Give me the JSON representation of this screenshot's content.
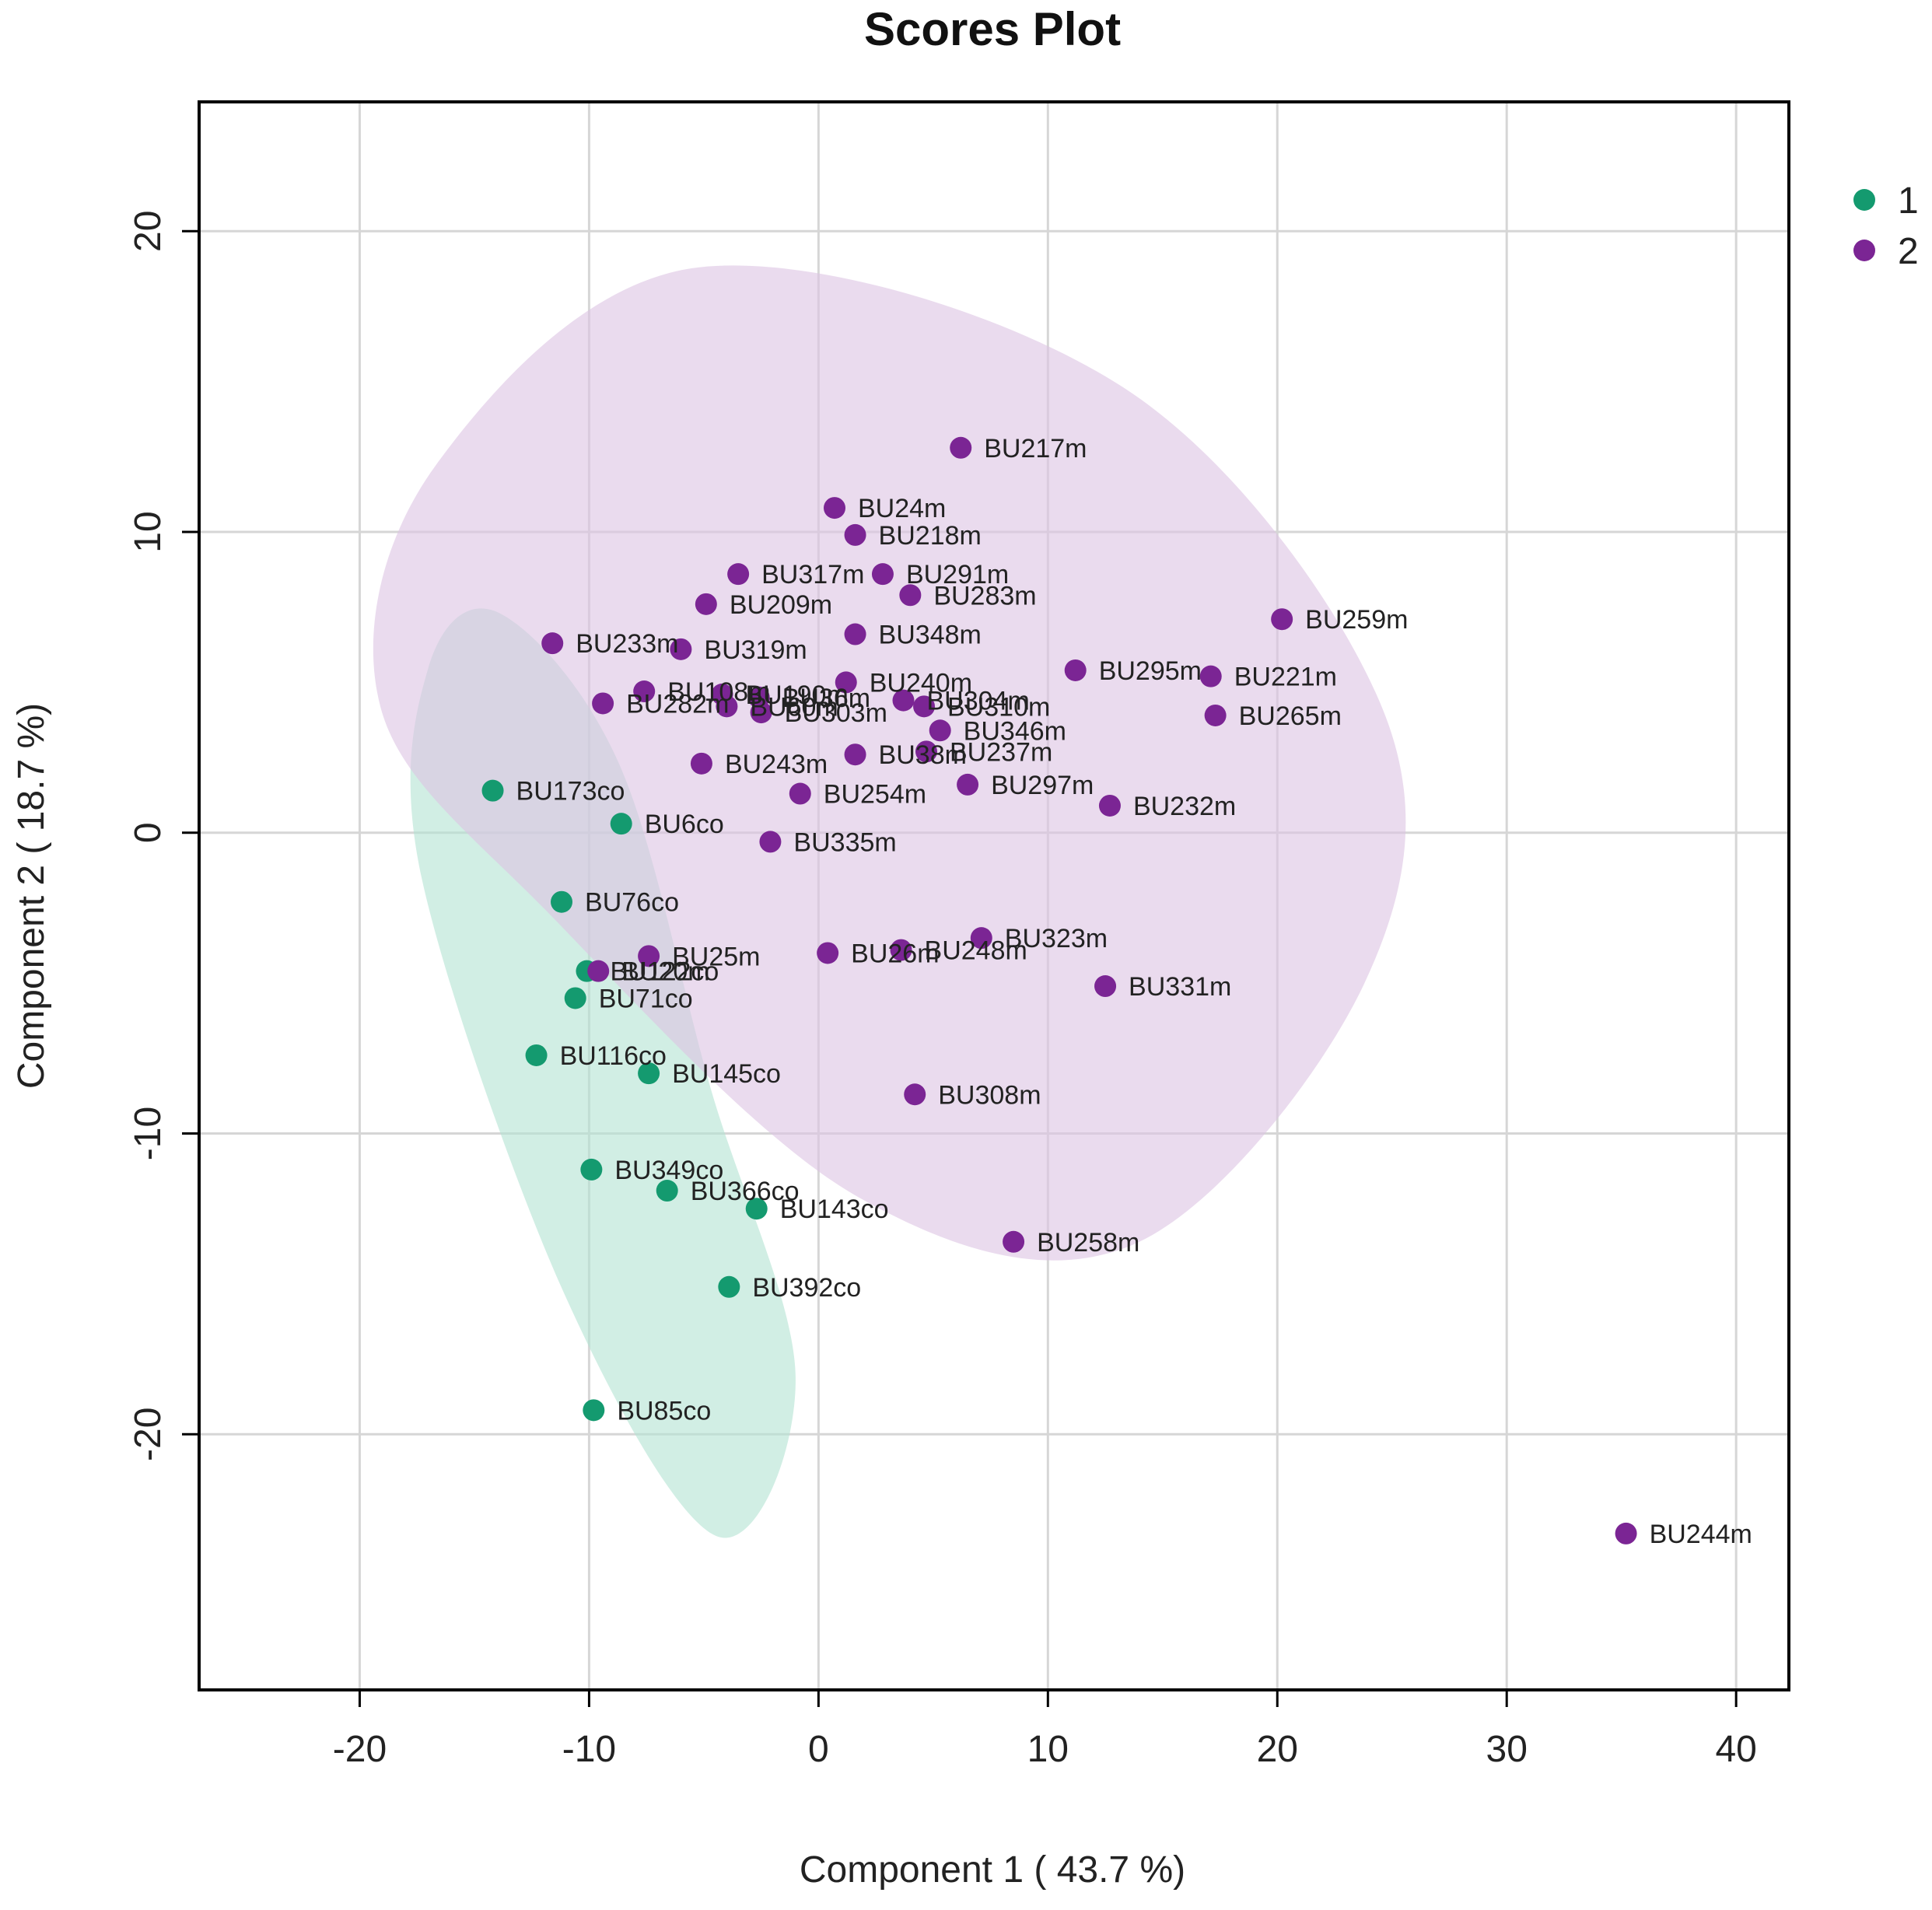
{
  "chart_data": {
    "type": "scatter",
    "title": "Scores Plot",
    "xlabel": "Component 1 ( 43.7 %)",
    "ylabel": "Component 2 ( 18.7 %)",
    "xlim": [
      -27,
      42.3
    ],
    "ylim": [
      -28.5,
      24.3
    ],
    "xticks": [
      -20,
      -10,
      0,
      10,
      20,
      30,
      40
    ],
    "yticks": [
      -20,
      -10,
      0,
      10,
      20
    ],
    "xtick_labels": [
      "-20",
      "-10",
      "0",
      "10",
      "20",
      "30",
      "40"
    ],
    "ytick_labels": [
      "-20",
      "-10",
      "0",
      "10",
      "20"
    ],
    "grid": true,
    "legend_position": "top-right",
    "series": [
      {
        "name": "1",
        "color": "#149a6f",
        "ellipse_fill": "#b3e2d2",
        "points": [
          {
            "label": "BU173co",
            "x": -14.2,
            "y": 1.4
          },
          {
            "label": "BU6co",
            "x": -8.6,
            "y": 0.3
          },
          {
            "label": "BU76co",
            "x": -11.2,
            "y": -2.3
          },
          {
            "label": "BU122co",
            "x": -10.1,
            "y": -4.6
          },
          {
            "label": "BU71co",
            "x": -10.6,
            "y": -5.5
          },
          {
            "label": "BU116co",
            "x": -12.3,
            "y": -7.4
          },
          {
            "label": "BU145co",
            "x": -7.4,
            "y": -8.0
          },
          {
            "label": "BU349co",
            "x": -9.9,
            "y": -11.2
          },
          {
            "label": "BU366co",
            "x": -6.6,
            "y": -11.9
          },
          {
            "label": "BU143co",
            "x": -2.7,
            "y": -12.5
          },
          {
            "label": "BU392co",
            "x": -3.9,
            "y": -15.1
          },
          {
            "label": "BU85co",
            "x": -9.8,
            "y": -19.2
          }
        ]
      },
      {
        "name": "2",
        "color": "#7b2594",
        "ellipse_fill": "#dcc3e3",
        "points": [
          {
            "label": "BU217m",
            "x": 6.2,
            "y": 12.8
          },
          {
            "label": "BU24m",
            "x": 0.7,
            "y": 10.8
          },
          {
            "label": "BU218m",
            "x": 1.6,
            "y": 9.9
          },
          {
            "label": "BU317m",
            "x": -3.5,
            "y": 8.6
          },
          {
            "label": "BU291m",
            "x": 2.8,
            "y": 8.6
          },
          {
            "label": "BU209m",
            "x": -4.9,
            "y": 7.6
          },
          {
            "label": "BU283m",
            "x": 4.0,
            "y": 7.9
          },
          {
            "label": "BU259m",
            "x": 20.2,
            "y": 7.1
          },
          {
            "label": "BU348m",
            "x": 1.6,
            "y": 6.6
          },
          {
            "label": "BU233m",
            "x": -11.6,
            "y": 6.3
          },
          {
            "label": "BU319m",
            "x": -6.0,
            "y": 6.1
          },
          {
            "label": "BU295m",
            "x": 11.2,
            "y": 5.4
          },
          {
            "label": "BU221m",
            "x": 17.1,
            "y": 5.2
          },
          {
            "label": "BU240m",
            "x": 1.2,
            "y": 5.0
          },
          {
            "label": "BU108m",
            "x": -7.6,
            "y": 4.7
          },
          {
            "label": "BU190m",
            "x": -4.2,
            "y": 4.6
          },
          {
            "label": "BU36m",
            "x": -2.6,
            "y": 4.5
          },
          {
            "label": "BU304m",
            "x": 3.7,
            "y": 4.4
          },
          {
            "label": "BU282m",
            "x": -9.4,
            "y": 4.3
          },
          {
            "label": "BU310m",
            "x": 4.6,
            "y": 4.2
          },
          {
            "label": "BU60m",
            "x": -4.0,
            "y": 4.2
          },
          {
            "label": "BU303m",
            "x": -2.5,
            "y": 4.0
          },
          {
            "label": "BU265m",
            "x": 17.3,
            "y": 3.9
          },
          {
            "label": "BU346m",
            "x": 5.3,
            "y": 3.4
          },
          {
            "label": "BU38m",
            "x": 1.6,
            "y": 2.6
          },
          {
            "label": "BU237m",
            "x": 4.7,
            "y": 2.7
          },
          {
            "label": "BU243m",
            "x": -5.1,
            "y": 2.3
          },
          {
            "label": "BU297m",
            "x": 6.5,
            "y": 1.6
          },
          {
            "label": "BU254m",
            "x": -0.8,
            "y": 1.3
          },
          {
            "label": "BU232m",
            "x": 12.7,
            "y": 0.9
          },
          {
            "label": "BU335m",
            "x": -2.1,
            "y": -0.3
          },
          {
            "label": "BU323m",
            "x": 7.1,
            "y": -3.5
          },
          {
            "label": "BU25m",
            "x": -7.4,
            "y": -4.1
          },
          {
            "label": "BU26m",
            "x": 0.4,
            "y": -4.0
          },
          {
            "label": "BU248m",
            "x": 3.6,
            "y": -3.9
          },
          {
            "label": "BU20m",
            "x": -9.6,
            "y": -4.6
          },
          {
            "label": "BU331m",
            "x": 12.5,
            "y": -5.1
          },
          {
            "label": "BU308m",
            "x": 4.2,
            "y": -8.7
          },
          {
            "label": "BU258m",
            "x": 8.5,
            "y": -13.6
          },
          {
            "label": "BU244m",
            "x": 35.2,
            "y": -23.3
          }
        ]
      }
    ],
    "ellipses": [
      {
        "series": "1",
        "vertices": [
          [
            -17.0,
            5.5
          ],
          [
            -13.9,
            7.3
          ],
          [
            -8.7,
            2.3
          ],
          [
            -4.7,
            -8.5
          ],
          [
            -1.0,
            -18.1
          ],
          [
            -4.4,
            -23.4
          ],
          [
            -11.1,
            -15.3
          ],
          [
            -17.3,
            -1.5
          ]
        ]
      },
      {
        "series": "2",
        "vertices": [
          [
            -16.7,
            12.2
          ],
          [
            -5.2,
            18.8
          ],
          [
            13.3,
            14.8
          ],
          [
            24.6,
            4.1
          ],
          [
            23.8,
            -5.0
          ],
          [
            13.7,
            -13.7
          ],
          [
            1.7,
            -12.1
          ],
          [
            -11.6,
            -2.8
          ],
          [
            -19.1,
            4.2
          ]
        ]
      }
    ]
  }
}
